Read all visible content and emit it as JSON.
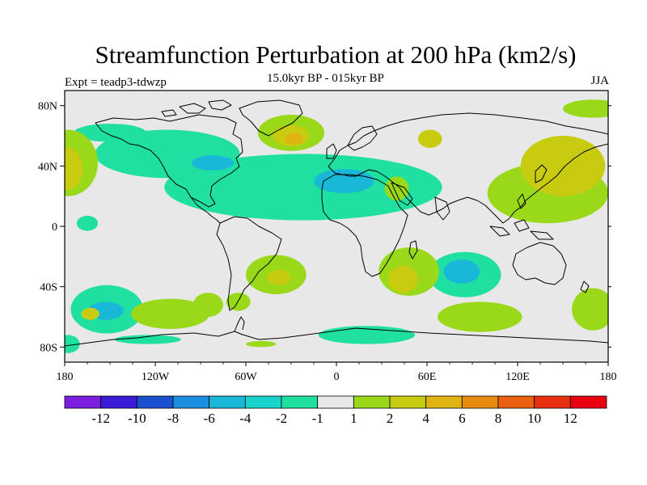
{
  "title": "Streamfunction Perturbation at 200 hPa (km2/s)",
  "experiment": "Expt = teadp3-tdwzp",
  "period": "15.0kyr BP - 015kyr BP",
  "season": "JJA",
  "colors": {
    "background": "#e8e8e8",
    "land_outline": "#000000"
  },
  "lat_ticks": [
    {
      "value": 80,
      "label": "80N"
    },
    {
      "value": 40,
      "label": "40N"
    },
    {
      "value": 0,
      "label": "0"
    },
    {
      "value": -40,
      "label": "40S"
    },
    {
      "value": -80,
      "label": "80S"
    }
  ],
  "lon_ticks": [
    {
      "value": -180,
      "label": "180"
    },
    {
      "value": -120,
      "label": "120W"
    },
    {
      "value": -60,
      "label": "60W"
    },
    {
      "value": 0,
      "label": "0"
    },
    {
      "value": 60,
      "label": "60E"
    },
    {
      "value": 120,
      "label": "120E"
    },
    {
      "value": 180,
      "label": "180"
    }
  ],
  "colorbar": {
    "colors": [
      "#7c1fe0",
      "#3a1ad6",
      "#1a4fd0",
      "#1b8ee0",
      "#1ab8d8",
      "#18d4cc",
      "#1fe0a0",
      "#e8e8e8",
      "#9ad81a",
      "#c8cc10",
      "#e0b410",
      "#e88c10",
      "#e86010",
      "#e83010",
      "#e80010"
    ],
    "labels": [
      "-12",
      "-10",
      "-8",
      "-6",
      "-4",
      "-2",
      "-1",
      "1",
      "2",
      "4",
      "6",
      "8",
      "10",
      "12"
    ]
  },
  "field": [
    {
      "level": 1,
      "color": "#1fe0a0",
      "center": [
        -22,
        26
      ],
      "radius": [
        92,
        22
      ]
    },
    {
      "level": 1,
      "color": "#1fe0a0",
      "center": [
        -112,
        48
      ],
      "radius": [
        48,
        16
      ]
    },
    {
      "level": 1,
      "color": "#1fe0a0",
      "center": [
        -152,
        -55
      ],
      "radius": [
        24,
        16
      ]
    },
    {
      "level": 1,
      "color": "#1fe0a0",
      "center": [
        20,
        -72
      ],
      "radius": [
        32,
        6
      ]
    },
    {
      "level": 1,
      "color": "#1fe0a0",
      "center": [
        -125,
        -75
      ],
      "radius": [
        22,
        3
      ]
    },
    {
      "level": 1,
      "color": "#1fe0a0",
      "center": [
        -178,
        -78
      ],
      "radius": [
        8,
        6
      ]
    },
    {
      "level": 1,
      "color": "#1fe0a0",
      "center": [
        85,
        -32
      ],
      "radius": [
        24,
        15
      ]
    },
    {
      "level": 1,
      "color": "#1fe0a0",
      "center": [
        -165,
        2
      ],
      "radius": [
        7,
        5
      ]
    },
    {
      "level": 1,
      "color": "#1fe0a0",
      "center": [
        -150,
        62
      ],
      "radius": [
        24,
        6
      ]
    },
    {
      "level": 2,
      "color": "#1ab8d8",
      "center": [
        -153,
        -56
      ],
      "radius": [
        12,
        6
      ]
    },
    {
      "level": 2,
      "color": "#1ab8d8",
      "center": [
        83,
        -30
      ],
      "radius": [
        12,
        8
      ]
    },
    {
      "level": 2,
      "color": "#1ab8d8",
      "center": [
        5,
        30
      ],
      "radius": [
        20,
        8
      ]
    },
    {
      "level": 2,
      "color": "#1ab8d8",
      "center": [
        -82,
        42
      ],
      "radius": [
        14,
        5
      ]
    },
    {
      "level": 3,
      "color": "#9ad81a",
      "center": [
        -30,
        62
      ],
      "radius": [
        22,
        12
      ]
    },
    {
      "level": 3,
      "color": "#9ad81a",
      "center": [
        40,
        25
      ],
      "radius": [
        8,
        8
      ]
    },
    {
      "level": 3,
      "color": "#9ad81a",
      "center": [
        48,
        -30
      ],
      "radius": [
        20,
        16
      ]
    },
    {
      "level": 3,
      "color": "#9ad81a",
      "center": [
        -40,
        -32
      ],
      "radius": [
        20,
        13
      ]
    },
    {
      "level": 3,
      "color": "#9ad81a",
      "center": [
        -65,
        -50
      ],
      "radius": [
        8,
        6
      ]
    },
    {
      "level": 3,
      "color": "#9ad81a",
      "center": [
        -85,
        -52
      ],
      "radius": [
        10,
        8
      ]
    },
    {
      "level": 3,
      "color": "#9ad81a",
      "center": [
        -110,
        -58
      ],
      "radius": [
        26,
        10
      ]
    },
    {
      "level": 3,
      "color": "#9ad81a",
      "center": [
        95,
        -60
      ],
      "radius": [
        28,
        10
      ]
    },
    {
      "level": 3,
      "color": "#9ad81a",
      "center": [
        170,
        -55
      ],
      "radius": [
        14,
        14
      ]
    },
    {
      "level": 3,
      "color": "#9ad81a",
      "center": [
        140,
        22
      ],
      "radius": [
        40,
        20
      ]
    },
    {
      "level": 3,
      "color": "#9ad81a",
      "center": [
        -178,
        42
      ],
      "radius": [
        20,
        22
      ]
    },
    {
      "level": 3,
      "color": "#9ad81a",
      "center": [
        -50,
        -78
      ],
      "radius": [
        10,
        2
      ]
    },
    {
      "level": 3,
      "color": "#9ad81a",
      "center": [
        170,
        78
      ],
      "radius": [
        20,
        6
      ]
    },
    {
      "level": 4,
      "color": "#c8cc10",
      "center": [
        -30,
        60
      ],
      "radius": [
        12,
        7
      ]
    },
    {
      "level": 4,
      "color": "#c8cc10",
      "center": [
        44,
        -35
      ],
      "radius": [
        10,
        9
      ]
    },
    {
      "level": 4,
      "color": "#c8cc10",
      "center": [
        -38,
        -34
      ],
      "radius": [
        8,
        5
      ]
    },
    {
      "level": 4,
      "color": "#c8cc10",
      "center": [
        150,
        40
      ],
      "radius": [
        28,
        20
      ]
    },
    {
      "level": 4,
      "color": "#c8cc10",
      "center": [
        -178,
        38
      ],
      "radius": [
        10,
        14
      ]
    },
    {
      "level": 4,
      "color": "#c8cc10",
      "center": [
        -163,
        -58
      ],
      "radius": [
        6,
        4
      ]
    },
    {
      "level": 4,
      "color": "#c8cc10",
      "center": [
        62,
        58
      ],
      "radius": [
        8,
        6
      ]
    },
    {
      "level": 5,
      "color": "#e0b410",
      "center": [
        -28,
        58
      ],
      "radius": [
        6,
        4
      ]
    }
  ]
}
